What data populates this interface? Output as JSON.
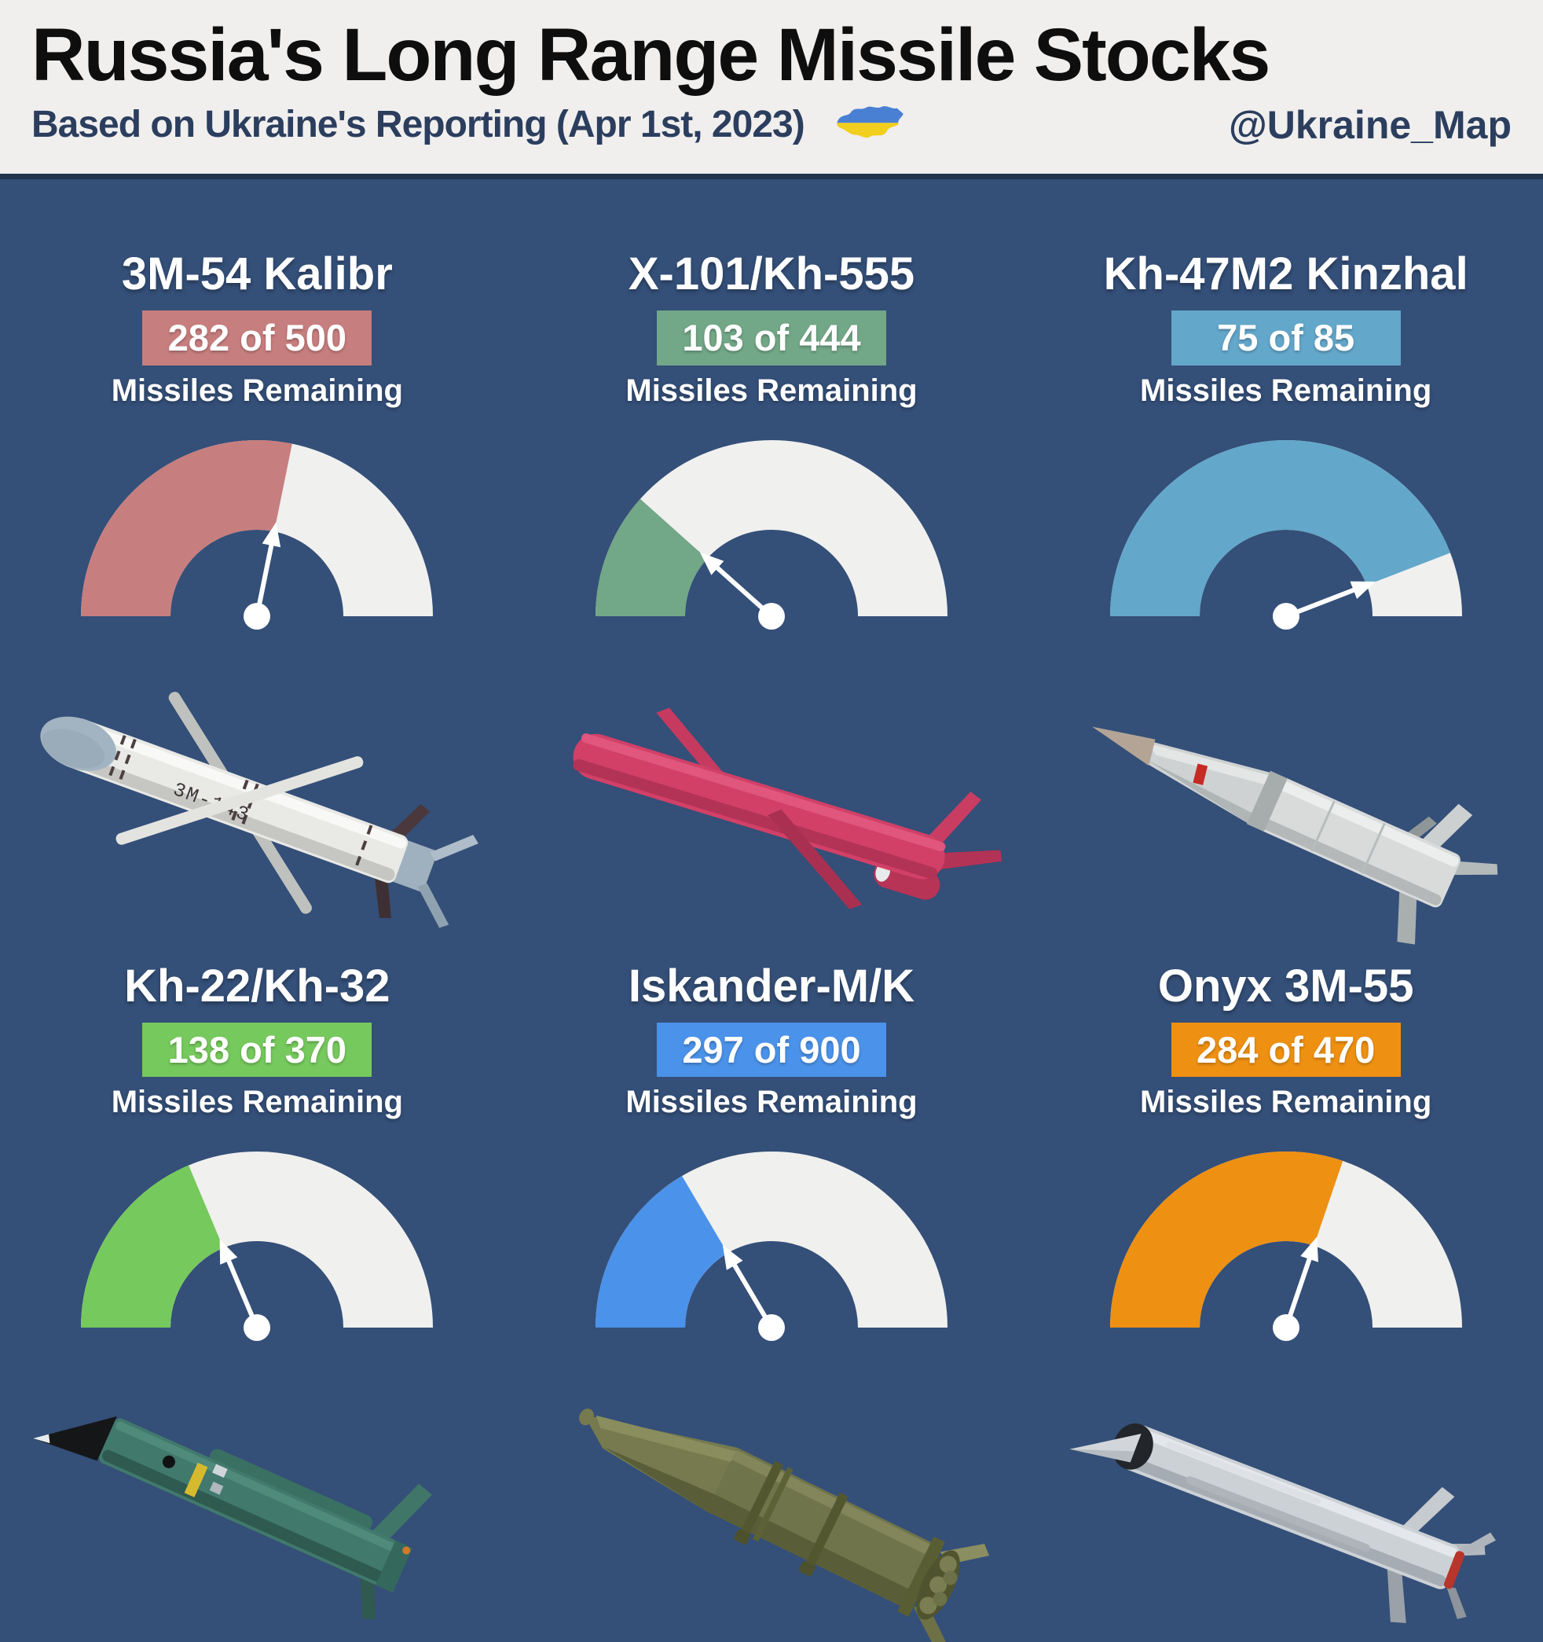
{
  "header": {
    "title": "Russia's Long Range Missile Stocks",
    "subtitle": "Based on Ukraine's Reporting (Apr 1st, 2023)",
    "handle": "@Ukraine_Map",
    "flag_icon": "ukraine-map-icon",
    "flag_colors": {
      "blue": "#4a80d4",
      "yellow": "#f2cf1f"
    }
  },
  "labels": {
    "remaining": "Missiles Remaining"
  },
  "theme": {
    "background": "#344f78",
    "header_bg": "#f0efee",
    "separator": "#22354f",
    "title_text": "#0e0e0e",
    "subtitle_text": "#2c3e5e",
    "panel_text": "#ffffff",
    "gauge_empty": "#f0f0ee",
    "needle": "#ffffff"
  },
  "panels": [
    {
      "id": "kalibr",
      "name": "3M-54 Kalibr",
      "remaining": 282,
      "total": 500,
      "stock_label": "282 of 500",
      "color": "#c77e7e",
      "body_marking": "3M-143"
    },
    {
      "id": "x101",
      "name": "X-101/Kh-555",
      "remaining": 103,
      "total": 444,
      "stock_label": "103 of 444",
      "color": "#72a787"
    },
    {
      "id": "kinzhal",
      "name": "Kh-47M2 Kinzhal",
      "remaining": 75,
      "total": 85,
      "stock_label": "75 of 85",
      "color": "#63a7ca"
    },
    {
      "id": "kh22",
      "name": "Kh-22/Kh-32",
      "remaining": 138,
      "total": 370,
      "stock_label": "138 of 370",
      "color": "#76c95d"
    },
    {
      "id": "iskander",
      "name": "Iskander-M/K",
      "remaining": 297,
      "total": 900,
      "stock_label": "297 of 900",
      "color": "#4b92ea"
    },
    {
      "id": "onyx",
      "name": "Onyx 3M-55",
      "remaining": 284,
      "total": 470,
      "stock_label": "284 of 470",
      "color": "#ee9012"
    }
  ],
  "chart_data": {
    "type": "gauge",
    "title": "Russia's Long Range Missile Stocks",
    "subtitle": "Based on Ukraine's Reporting (Apr 1st, 2023)",
    "units": "missiles remaining of total stock",
    "series": [
      {
        "name": "3M-54 Kalibr",
        "remaining": 282,
        "total": 500,
        "fraction": 0.564,
        "color": "#c77e7e"
      },
      {
        "name": "X-101/Kh-555",
        "remaining": 103,
        "total": 444,
        "fraction": 0.232,
        "color": "#72a787"
      },
      {
        "name": "Kh-47M2 Kinzhal",
        "remaining": 75,
        "total": 85,
        "fraction": 0.882,
        "color": "#63a7ca"
      },
      {
        "name": "Kh-22/Kh-32",
        "remaining": 138,
        "total": 370,
        "fraction": 0.373,
        "color": "#76c95d"
      },
      {
        "name": "Iskander-M/K",
        "remaining": 297,
        "total": 900,
        "fraction": 0.33,
        "color": "#4b92ea"
      },
      {
        "name": "Onyx 3M-55",
        "remaining": 284,
        "total": 470,
        "fraction": 0.604,
        "color": "#ee9012"
      }
    ]
  }
}
